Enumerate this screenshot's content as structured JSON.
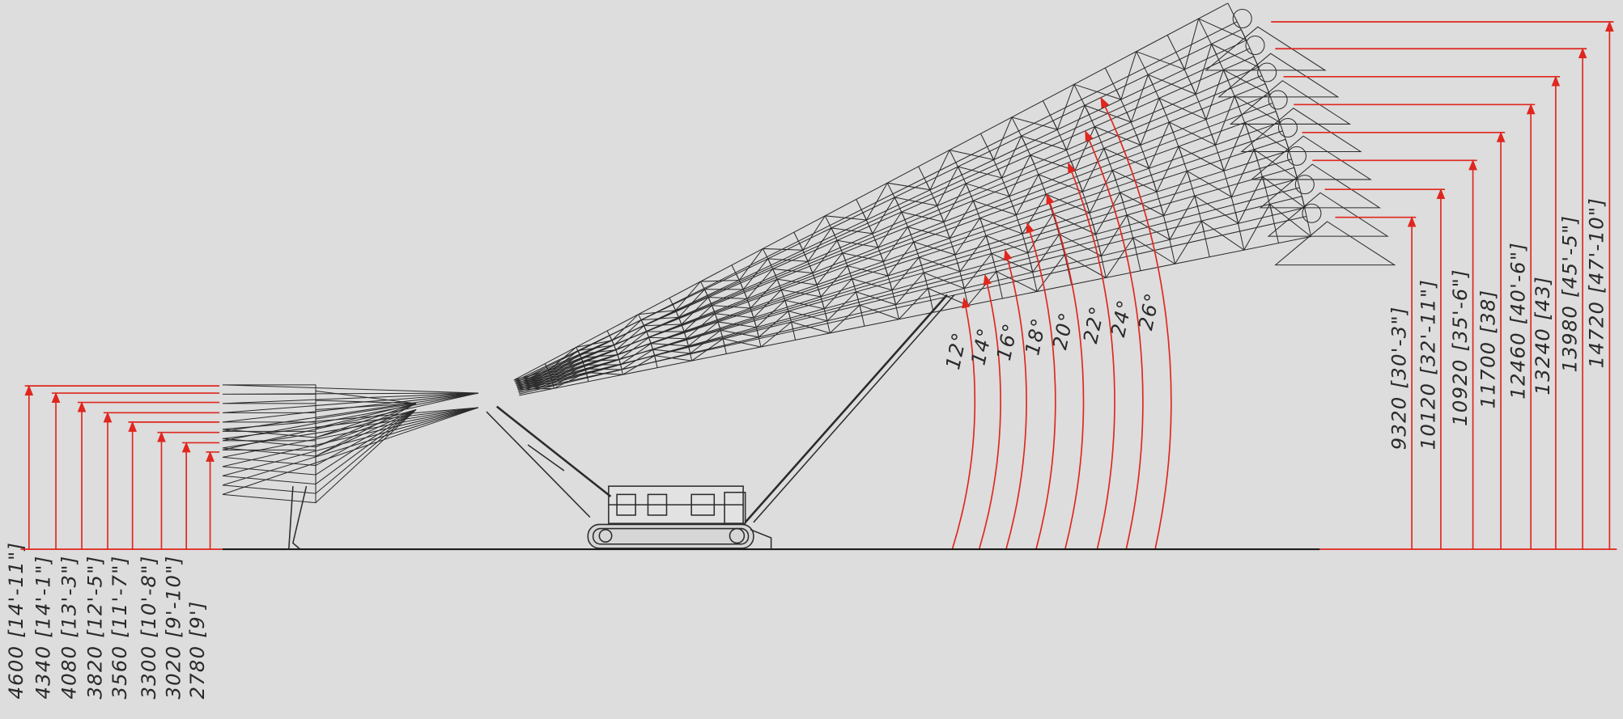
{
  "left_heights": [
    "4600 [14'-11\"]",
    "4340 [14'-1\"]",
    "4080 [13'-3\"]",
    "3820 [12'-5\"]",
    "3560 [11'-7\"]",
    "3300 [10'-8\"]",
    "3020 [9'-10\"]",
    "2780 [9']"
  ],
  "angles": [
    "12°",
    "14°",
    "16°",
    "18°",
    "20°",
    "22°",
    "24°",
    "26°"
  ],
  "right_heights": [
    "9320 [30'-3\"]",
    "10120 [32'-11\"]",
    "10920 [35'-6\"]",
    "11700 [38]",
    "12460 [40'-6\"]",
    "13240 [43]",
    "13980 [45'-5\"]",
    "14720 [47'-10\"]"
  ]
}
